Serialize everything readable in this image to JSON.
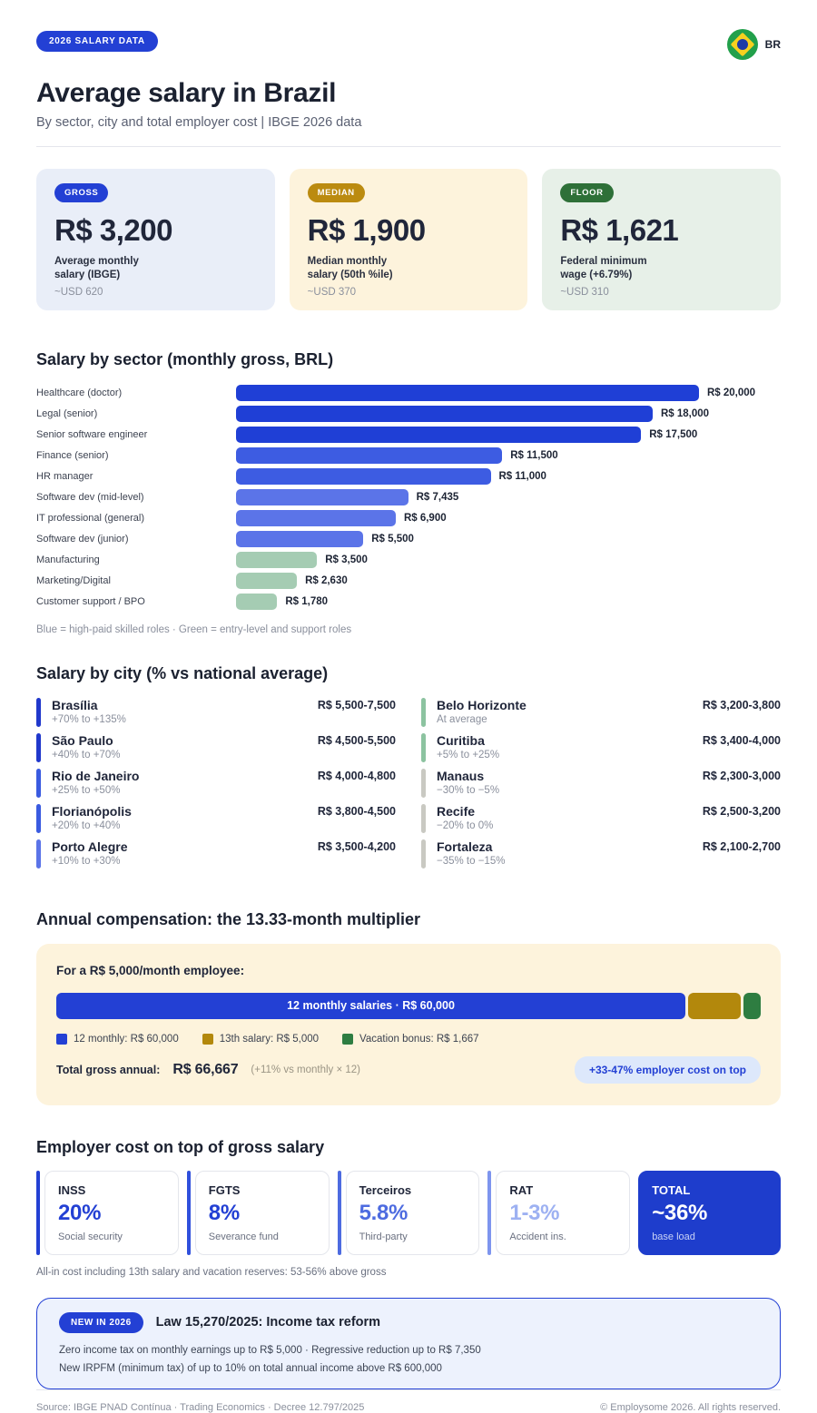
{
  "header": {
    "badge": "2026 SALARY DATA",
    "flag_label": "BR",
    "title": "Average salary in Brazil",
    "subtitle": "By sector, city and total employer cost  |  IBGE 2026 data"
  },
  "stat_cards": [
    {
      "badge": "GROSS",
      "badge_color": "#2340d4",
      "bg": "#e9eef8",
      "value": "R$ 3,200",
      "desc": "Average monthly\nsalary (IBGE)",
      "usd": "~USD 620"
    },
    {
      "badge": "MEDIAN",
      "badge_color": "#bb8b10",
      "bg": "#fdf3dc",
      "value": "R$ 1,900",
      "desc": "Median monthly\nsalary (50th %ile)",
      "usd": "~USD 370"
    },
    {
      "badge": "FLOOR",
      "badge_color": "#2e7038",
      "bg": "#e7f0e8",
      "value": "R$ 1,621",
      "desc": "Federal minimum\nwage (+6.79%)",
      "usd": "~USD 310"
    }
  ],
  "sector_section": {
    "heading": "Salary by sector (monthly gross, BRL)",
    "note": "Blue = high-paid skilled roles   ·   Green = entry-level and support roles"
  },
  "chart_data": [
    {
      "type": "bar",
      "orientation": "horizontal",
      "title": "Salary by sector (monthly gross, BRL)",
      "xlabel": "",
      "ylabel": "",
      "xlim": [
        0,
        20000
      ],
      "grid": false,
      "categories": [
        "Healthcare (doctor)",
        "Legal (senior)",
        "Senior software engineer",
        "Finance (senior)",
        "HR manager",
        "Software dev (mid-level)",
        "IT professional (general)",
        "Software dev (junior)",
        "Manufacturing",
        "Marketing/Digital",
        "Customer support / BPO"
      ],
      "values": [
        20000,
        18000,
        17500,
        11500,
        11000,
        7435,
        6900,
        5500,
        3500,
        2630,
        1780
      ],
      "value_labels": [
        "R$ 20,000",
        "R$ 18,000",
        "R$ 17,500",
        "R$ 11,500",
        "R$ 11,000",
        "R$ 7,435",
        "R$ 6,900",
        "R$ 5,500",
        "R$ 3,500",
        "R$ 2,630",
        "R$ 1,780"
      ],
      "bar_colors": [
        "#1f3fd6",
        "#1f3fd6",
        "#1f3fd6",
        "#3d5ce2",
        "#3d5ce2",
        "#5b74e8",
        "#5b74e8",
        "#5b74e8",
        "#a5ccb3",
        "#a5ccb3",
        "#a5ccb3"
      ],
      "legend_note": "Blue = high-paid skilled roles · Green = entry-level and support roles"
    },
    {
      "type": "bar",
      "subtype": "stacked-horizontal",
      "title": "For a R$ 5,000/month employee:",
      "categories": [
        "12 monthly salaries",
        "13th salary",
        "Vacation bonus"
      ],
      "values": [
        60000,
        5000,
        1667
      ],
      "total": 66667,
      "colors": [
        "#2340d4",
        "#b3880c",
        "#2e7d41"
      ],
      "inner_label": "12 monthly salaries  ·  R$ 60,000"
    }
  ],
  "city_section": {
    "heading": "Salary by city (% vs national average)",
    "left": [
      {
        "name": "Brasília",
        "sub": "+70% to +135%",
        "range": "R$ 5,500-7,500",
        "accent": "#2038cc"
      },
      {
        "name": "São Paulo",
        "sub": "+40% to +70%",
        "range": "R$ 4,500-5,500",
        "accent": "#2038cc"
      },
      {
        "name": "Rio de Janeiro",
        "sub": "+25% to +50%",
        "range": "R$ 4,000-4,800",
        "accent": "#3a5be0"
      },
      {
        "name": "Florianópolis",
        "sub": "+20% to +40%",
        "range": "R$ 3,800-4,500",
        "accent": "#3a5be0"
      },
      {
        "name": "Porto Alegre",
        "sub": "+10% to +30%",
        "range": "R$ 3,500-4,200",
        "accent": "#5b74e8"
      }
    ],
    "right": [
      {
        "name": "Belo Horizonte",
        "sub": "At average",
        "range": "R$ 3,200-3,800",
        "accent": "#8cc3a0"
      },
      {
        "name": "Curitiba",
        "sub": "+5% to +25%",
        "range": "R$ 3,400-4,000",
        "accent": "#8cc3a0"
      },
      {
        "name": "Manaus",
        "sub": "−30% to −5%",
        "range": "R$ 2,300-3,000",
        "accent": "#c9c9c2"
      },
      {
        "name": "Recife",
        "sub": "−20% to 0%",
        "range": "R$ 2,500-3,200",
        "accent": "#c9c9c2"
      },
      {
        "name": "Fortaleza",
        "sub": "−35% to −15%",
        "range": "R$ 2,100-2,700",
        "accent": "#c9c9c2"
      }
    ]
  },
  "annual_section": {
    "heading": "Annual compensation: the 13.33-month multiplier",
    "card_title": "For a R$ 5,000/month employee:",
    "bar_inner_label": "12 monthly salaries  ·  R$ 60,000",
    "legend": [
      {
        "label": "12 monthly: R$ 60,000",
        "color": "#2340d4"
      },
      {
        "label": "13th salary: R$ 5,000",
        "color": "#b3880c"
      },
      {
        "label": "Vacation bonus: R$ 1,667",
        "color": "#2e7d41"
      }
    ],
    "total_label": "Total gross annual:",
    "total_value": "R$ 66,667",
    "total_note": "(+11% vs monthly × 12)",
    "pill": "+33-47% employer cost on top"
  },
  "cost_section": {
    "heading": "Employer cost on top of gross salary",
    "cards": [
      {
        "name": "INSS",
        "pct": "20%",
        "desc": "Social security",
        "pct_color": "#2340d4",
        "accent": "#2340d4",
        "highlight": false
      },
      {
        "name": "FGTS",
        "pct": "8%",
        "desc": "Severance fund",
        "pct_color": "#2340d4",
        "accent": "#3050dc",
        "highlight": false
      },
      {
        "name": "Terceiros",
        "pct": "5.8%",
        "desc": "Third-party",
        "pct_color": "#4d6be0",
        "accent": "#4d6be0",
        "highlight": false
      },
      {
        "name": "RAT",
        "pct": "1-3%",
        "desc": "Accident ins.",
        "pct_color": "#9db1f2",
        "accent": "#7e95ee",
        "highlight": false
      },
      {
        "name": "TOTAL",
        "pct": "~36%",
        "desc": "base load",
        "pct_color": "#ffffff",
        "accent": "",
        "highlight": true
      }
    ],
    "note": "All-in cost including 13th salary and vacation reserves: 53-56% above gross"
  },
  "law_card": {
    "badge": "NEW IN 2026",
    "title": "Law 15,270/2025: Income tax reform",
    "line1": "Zero income tax on monthly earnings up to R$ 5,000   ·   Regressive reduction up to R$ 7,350",
    "line2": "New IRPFM (minimum tax) of up to 10% on total annual income above R$ 600,000"
  },
  "footer": {
    "source": "Source: IBGE PNAD Contínua  ·  Trading Economics  ·  Decree 12.797/2025",
    "copyright": "© Employsome 2026. All rights reserved."
  }
}
